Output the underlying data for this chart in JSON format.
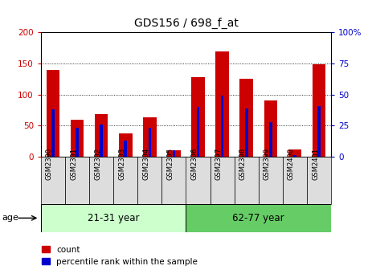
{
  "title": "GDS156 / 698_f_at",
  "samples": [
    "GSM2390",
    "GSM2391",
    "GSM2392",
    "GSM2393",
    "GSM2394",
    "GSM2395",
    "GSM2396",
    "GSM2397",
    "GSM2398",
    "GSM2399",
    "GSM2400",
    "GSM2401"
  ],
  "count_values": [
    140,
    60,
    69,
    37,
    63,
    10,
    128,
    170,
    125,
    91,
    12,
    149
  ],
  "percentile_values": [
    38,
    23,
    26,
    13,
    23,
    5,
    40,
    49,
    39,
    28,
    1,
    41
  ],
  "count_color": "#CC0000",
  "percentile_color": "#0000CC",
  "left_ylim": [
    0,
    200
  ],
  "right_ylim": [
    0,
    100
  ],
  "left_yticks": [
    0,
    50,
    100,
    150,
    200
  ],
  "right_yticks": [
    0,
    25,
    50,
    75,
    100
  ],
  "right_yticklabels": [
    "0",
    "25",
    "50",
    "75",
    "100%"
  ],
  "group1_label": "21-31 year",
  "group2_label": "62-77 year",
  "group1_count": 6,
  "age_label": "age",
  "group1_color": "#CCFFCC",
  "group2_color": "#66CC66",
  "sample_label_bg": "#DDDDDD",
  "bg_color": "#FFFFFF",
  "tick_label_color_left": "#CC0000",
  "tick_label_color_right": "#0000CC"
}
